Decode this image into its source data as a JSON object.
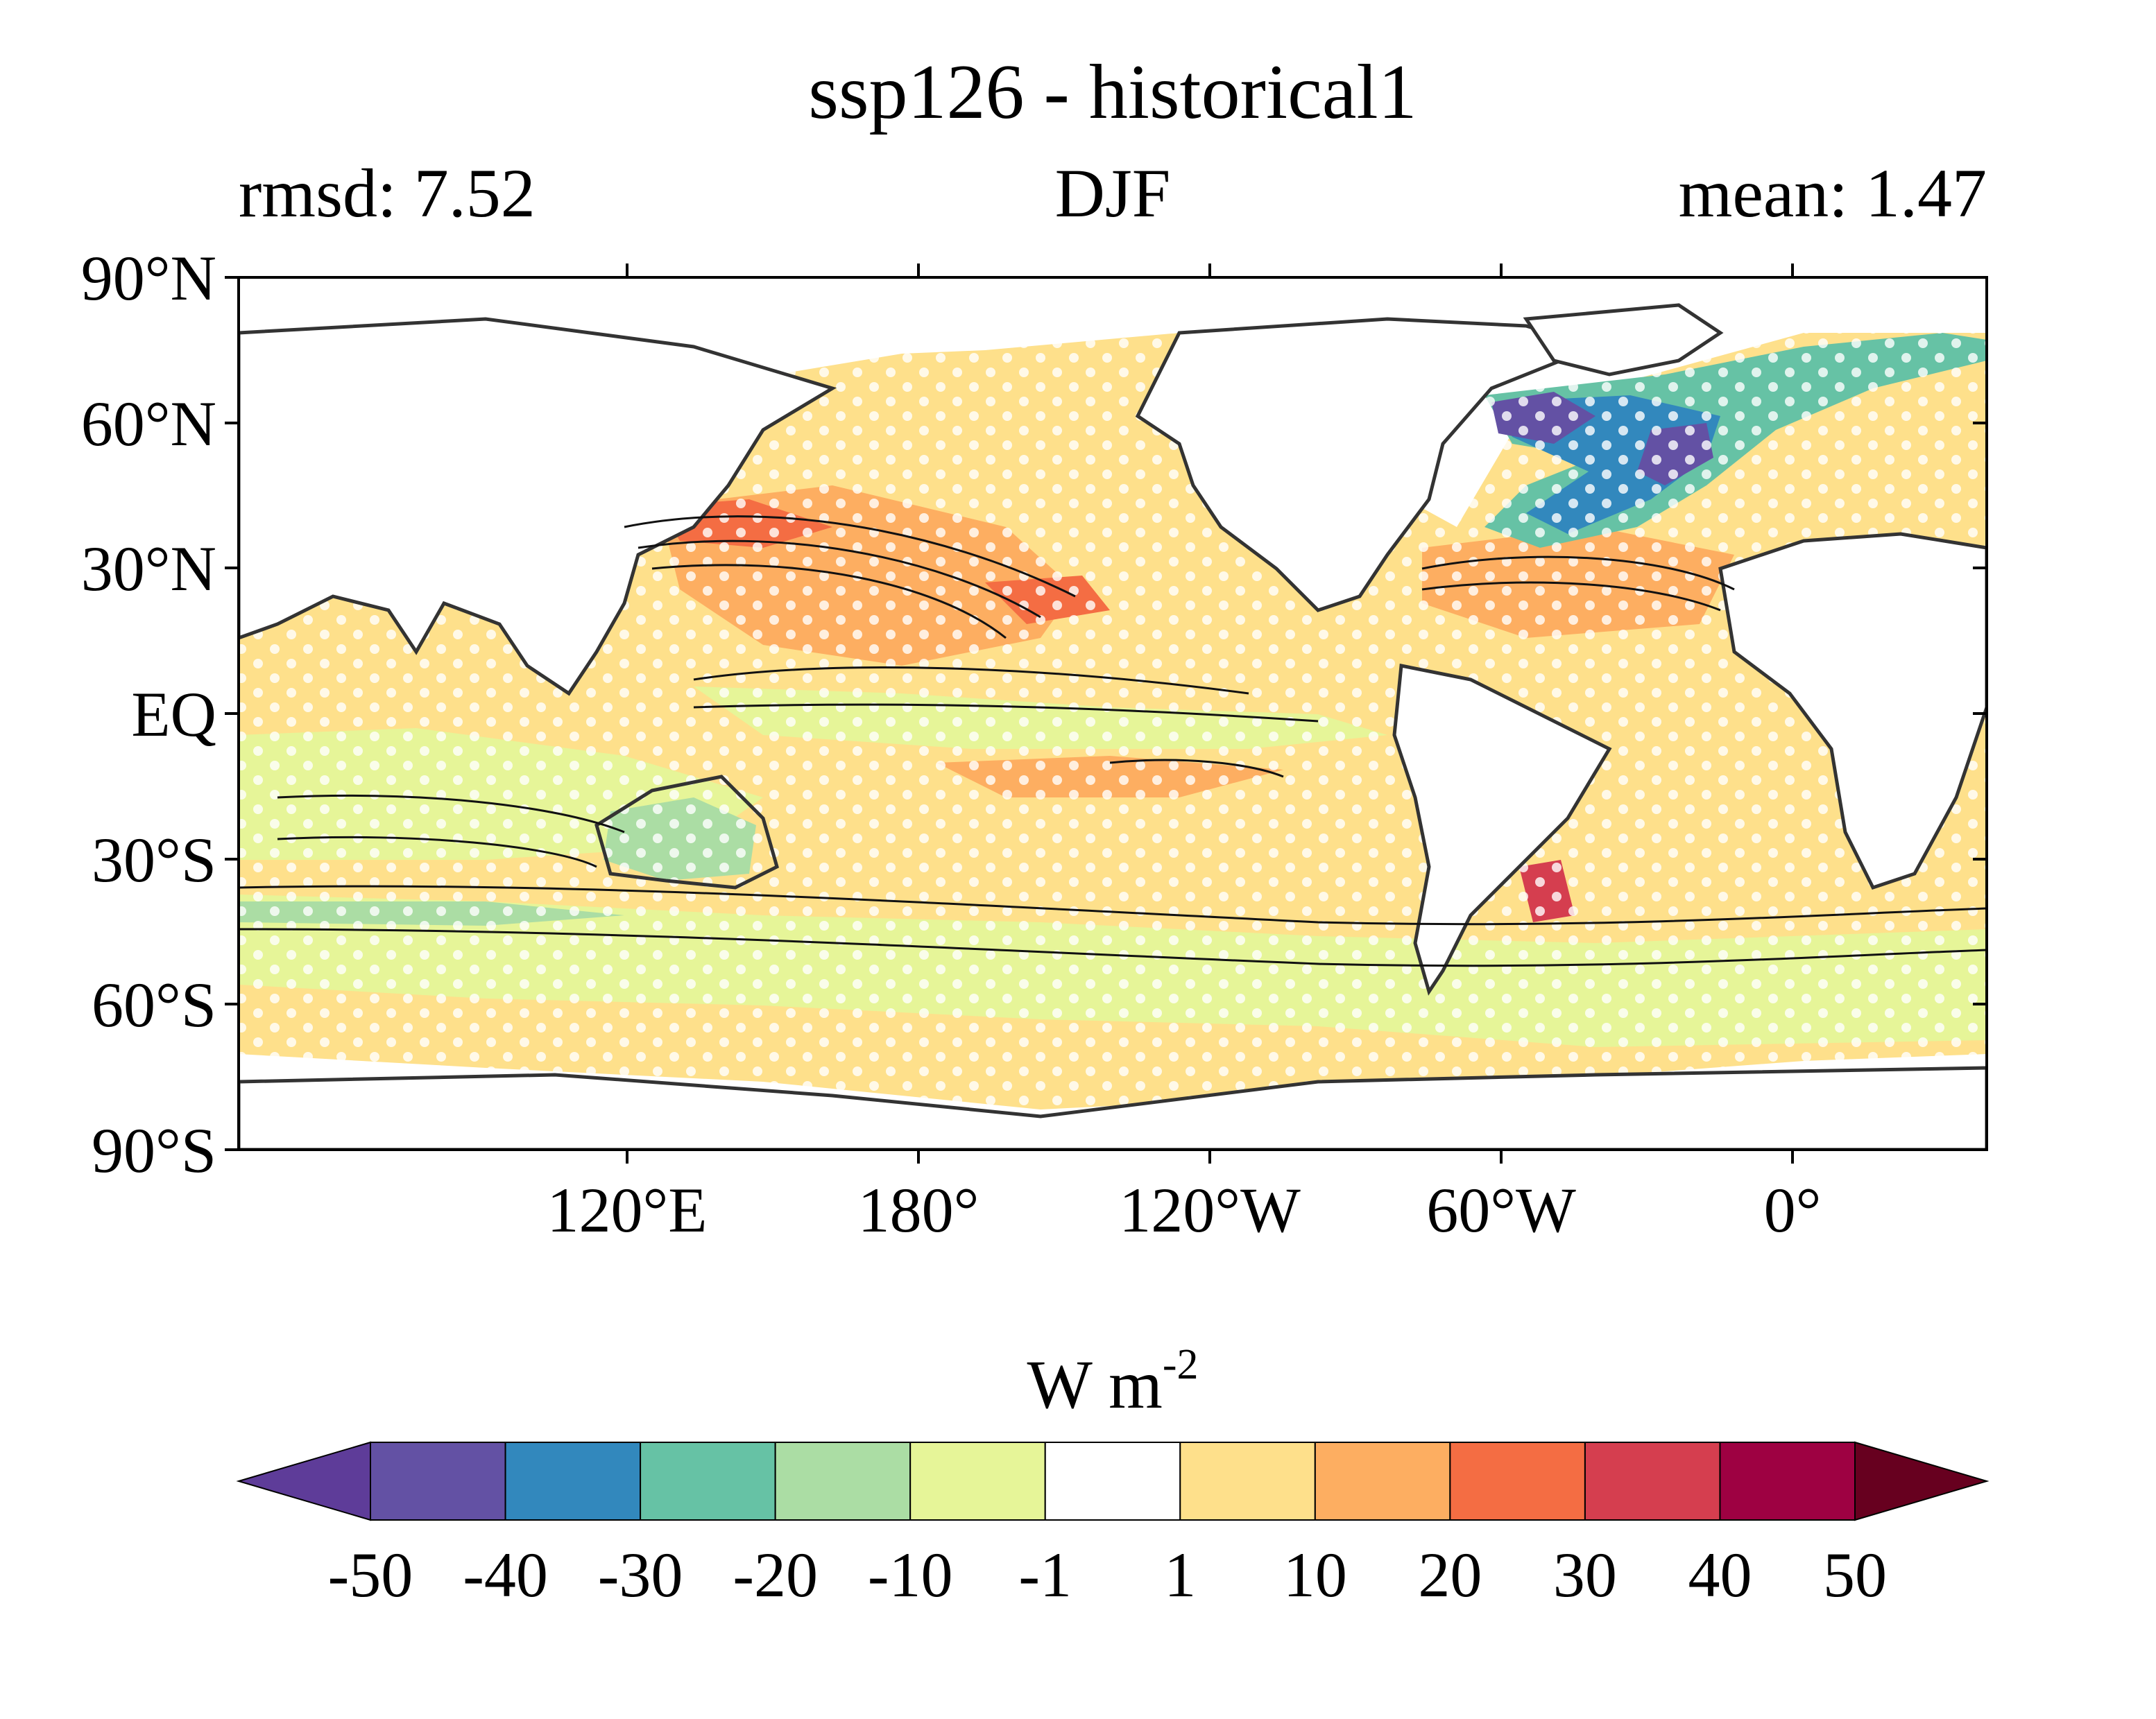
{
  "title": "ssp126 - historical1",
  "season": "DJF",
  "stats": {
    "rmsd_label": "rmsd: 7.52",
    "mean_label": "mean: 1.47"
  },
  "axes": {
    "lat_ticks": [
      "90°N",
      "60°N",
      "30°N",
      "EQ",
      "30°S",
      "60°S",
      "90°S"
    ],
    "lat_values": [
      90,
      60,
      30,
      0,
      -30,
      -60,
      -90
    ],
    "lon_ticks": [
      "120°E",
      "180°",
      "120°W",
      "60°W",
      "0°"
    ],
    "lon_values": [
      120,
      180,
      240,
      300,
      360
    ],
    "lon_range": [
      40,
      400
    ],
    "lat_range": [
      -90,
      90
    ]
  },
  "colorbar": {
    "unit": "W m",
    "unit_superscript": "-2",
    "tick_labels": [
      "-50",
      "-40",
      "-30",
      "-20",
      "-10",
      "-1",
      "1",
      "10",
      "20",
      "30",
      "40",
      "50"
    ],
    "levels": [
      -50,
      -40,
      -30,
      -20,
      -10,
      -1,
      1,
      10,
      20,
      30,
      40,
      50
    ],
    "colors": [
      "#5e3c99",
      "#6351a4",
      "#3288bd",
      "#66c2a5",
      "#abdda4",
      "#e6f598",
      "#ffffff",
      "#fee08b",
      "#fdae61",
      "#f46d43",
      "#d53e4f",
      "#9e0142",
      "#67001f"
    ]
  },
  "map_colors": {
    "ocean_fill": "#fee08b",
    "land": "#ffffff",
    "coast": "#333333",
    "contour": "#111111",
    "stipple": "#ffffff"
  }
}
